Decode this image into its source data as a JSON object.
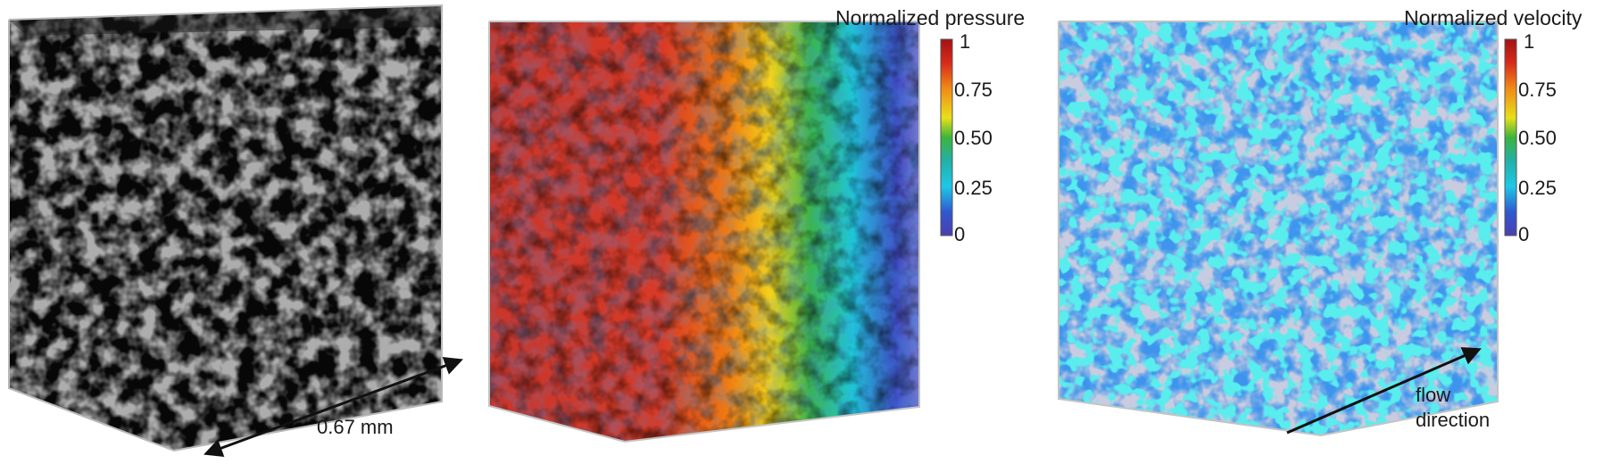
{
  "panels": [
    {
      "name": "pore-structure"
    },
    {
      "name": "pressure-field",
      "colorbar": {
        "title": "Normalized pressure",
        "ticks": [
          "1",
          "0.75",
          "0.50",
          "0.25",
          "0"
        ]
      }
    },
    {
      "name": "velocity-field",
      "colorbar": {
        "title": "Normalized velocity",
        "ticks": [
          "1",
          "0.75",
          "0.50",
          "0.25",
          "0"
        ]
      }
    }
  ],
  "annotations": {
    "scale_label": "0.67 mm",
    "flow_label_line1": "flow",
    "flow_label_line2": "direction"
  },
  "colors": {
    "background": "#ffffff",
    "cube_shadow": "#d9d9d9",
    "jet_low": "#3c2e9c",
    "jet_mid": "#2ea43a",
    "jet_high": "#b11c1c"
  }
}
